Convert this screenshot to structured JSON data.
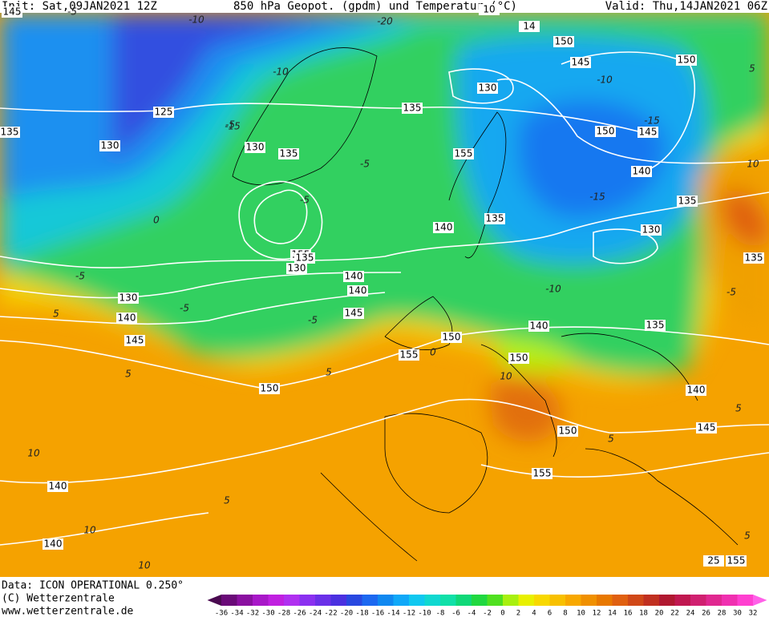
{
  "header": {
    "init": "Init: Sat,09JAN2021 12Z",
    "title": "850 hPa Geopot. (gpdm) und Temperatur (°C)",
    "valid": "Valid: Thu,14JAN2021 06Z"
  },
  "footer": {
    "lines": [
      "Data: ICON OPERATIONAL 0.250°",
      "(C) Wetterzentrale",
      "www.wetterzentrale.de"
    ]
  },
  "colorbar": {
    "labels": [
      "-36",
      "-34",
      "-32",
      "-30",
      "-28",
      "-26",
      "-24",
      "-22",
      "-20",
      "-18",
      "-16",
      "-14",
      "-12",
      "-10",
      "-8",
      "-6",
      "-4",
      "-2",
      "0",
      "2",
      "4",
      "6",
      "8",
      "10",
      "12",
      "14",
      "16",
      "18",
      "20",
      "22",
      "24",
      "26",
      "28",
      "30",
      "32"
    ],
    "colors": [
      "#4a0a50",
      "#6a0a78",
      "#8a10a0",
      "#a818c8",
      "#c020e0",
      "#b030f0",
      "#8a30f0",
      "#6a30e8",
      "#4a30e0",
      "#2848e0",
      "#1c68f0",
      "#1088f0",
      "#10a8f8",
      "#10c8f0",
      "#10d8d0",
      "#10e0a8",
      "#10d878",
      "#20d840",
      "#50e020",
      "#a8f010",
      "#e8f000",
      "#f8d800",
      "#f8c000",
      "#f8a800",
      "#f09000",
      "#e87800",
      "#e06010",
      "#d04818",
      "#c03020",
      "#b01830",
      "#c01850",
      "#d02070",
      "#e02890",
      "#f030b0",
      "#ff40d0",
      "#ff60e8"
    ]
  },
  "map": {
    "height_labels": [
      "135",
      "130",
      "125",
      "130",
      "135",
      "130",
      "135",
      "130",
      "135",
      "140",
      "135",
      "145",
      "150",
      "150",
      "145",
      "140",
      "135",
      "140",
      "130",
      "140",
      "135",
      "140",
      "140",
      "145",
      "150",
      "155",
      "145",
      "150",
      "140",
      "145",
      "150",
      "150",
      "155",
      "140",
      "140",
      "145",
      "150",
      "155",
      "155",
      "135",
      "14",
      "130",
      "10",
      "25",
      "155"
    ],
    "temp_labels": [
      "-5",
      "-10",
      "-15",
      "-10",
      "-5",
      "-5",
      "-5",
      "0",
      "-5",
      "5",
      "5",
      "10",
      "10",
      "5",
      "10",
      "5",
      "-15",
      "-10",
      "-5",
      "5",
      "-10",
      "-15",
      "-20",
      "10",
      "5",
      "10",
      "5",
      "0",
      "-5",
      "-5",
      "5"
    ]
  }
}
